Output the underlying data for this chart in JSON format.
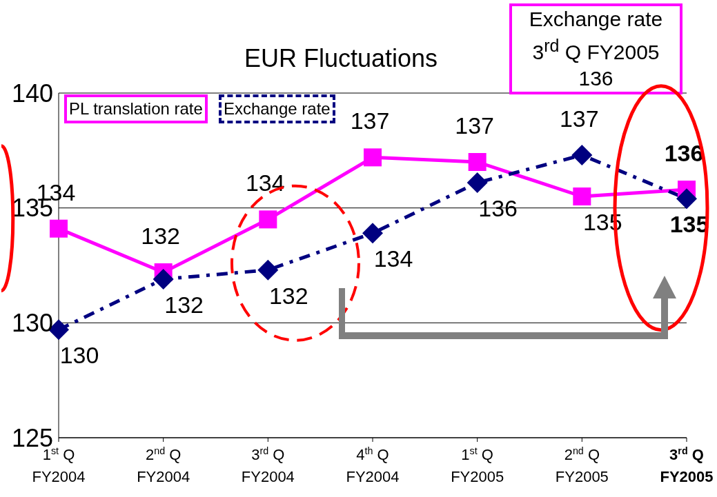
{
  "chart_data": {
    "type": "line",
    "title": "EUR Fluctuations",
    "categories": [
      "1$^{st}$ Q\nFY2004",
      "2$^{nd}$ Q\nFY2004",
      "3$^{rd}$ Q\nFY2004",
      "4$^{th}$ Q\nFY2004",
      "1$^{st}$ Q\nFY2005",
      "2$^{nd}$ Q\nFY2005",
      "3$^{rd}$ Q\nFY2005"
    ],
    "series": [
      {
        "name": "PL translation rate",
        "color": "#ff00ff",
        "marker": "square",
        "line_style": "solid",
        "values": [
          134.1,
          132.2,
          134.5,
          137.2,
          137.0,
          135.5,
          135.8
        ],
        "value_labels": [
          "134",
          "132",
          "134",
          "137",
          "137",
          "135",
          "136"
        ]
      },
      {
        "name": "Exchange rate",
        "color": "#000080",
        "marker": "diamond",
        "line_style": "dashed",
        "values": [
          129.7,
          131.9,
          132.3,
          133.9,
          136.1,
          137.3,
          135.4
        ],
        "value_labels": [
          "130",
          "132",
          "132",
          "134",
          "136",
          "137",
          "135"
        ]
      }
    ],
    "ylim": [
      125,
      140
    ],
    "yticks": [
      125,
      130,
      135,
      140
    ],
    "grid": "y",
    "legend": "top left",
    "annotations": [
      "Exchange rate\n3$^{rd}$ Q FY2005\n136"
    ]
  }
}
